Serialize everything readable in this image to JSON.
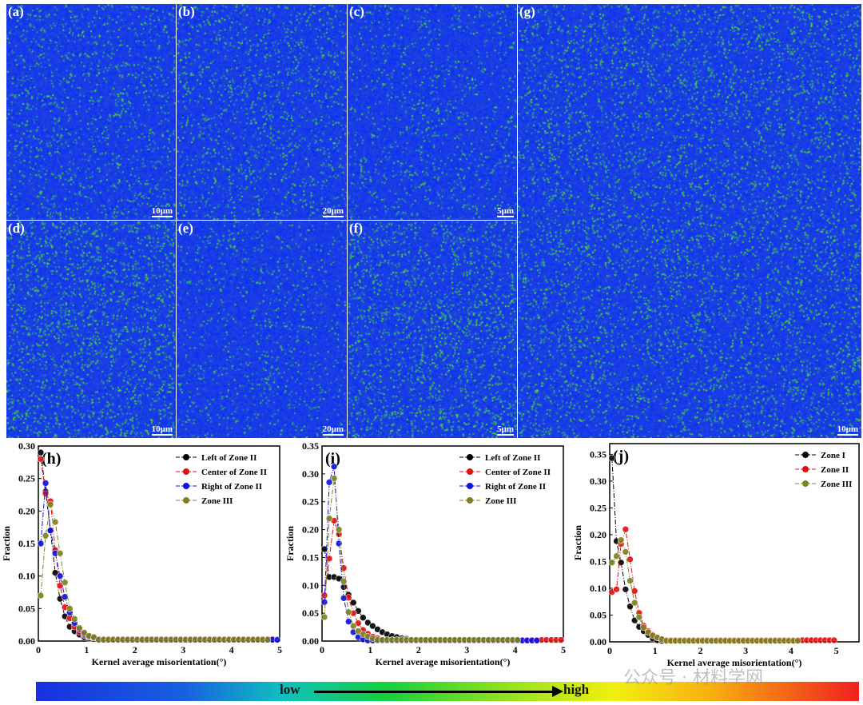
{
  "maps": [
    {
      "id": "a",
      "label": "(a)",
      "scale": "10μm",
      "green": 0.18
    },
    {
      "id": "b",
      "label": "(b)",
      "scale": "20μm",
      "green": 0.2
    },
    {
      "id": "c",
      "label": "(c)",
      "scale": "5μm",
      "green": 0.15
    },
    {
      "id": "d",
      "label": "(d)",
      "scale": "10μm",
      "green": 0.3
    },
    {
      "id": "e",
      "label": "(e)",
      "scale": "20μm",
      "green": 0.14
    },
    {
      "id": "f",
      "label": "(f)",
      "scale": "5μm",
      "green": 0.28
    },
    {
      "id": "g",
      "label": "(g)",
      "scale": "10μm",
      "green": 0.25
    }
  ],
  "colorbar": {
    "low": "low",
    "high": "high"
  },
  "watermark": "公众号 · 材料学网",
  "chart_data": [
    {
      "type": "line",
      "panel": "(h)",
      "xlabel": "Kernel average misorientation(°)",
      "ylabel": "Fraction",
      "xlim": [
        0,
        5
      ],
      "ylim": [
        0,
        0.3
      ],
      "yticks": [
        "0.00",
        "0.05",
        "0.10",
        "0.15",
        "0.20",
        "0.25",
        "0.30"
      ],
      "xticks": [
        "0",
        "1",
        "2",
        "3",
        "4",
        "5"
      ],
      "legend": "top-right",
      "x_start": 0.05,
      "x_step": 0.1,
      "series": [
        {
          "name": "Left of Zone II",
          "color": "#000000",
          "values": [
            0.29,
            0.23,
            0.17,
            0.105,
            0.065,
            0.038,
            0.022,
            0.015,
            0.01,
            0.006,
            0.004,
            0.003
          ],
          "tail": 0.002,
          "x_end": 4.85
        },
        {
          "name": "Center of Zone II",
          "color": "#e01010",
          "values": [
            0.28,
            0.227,
            0.215,
            0.14,
            0.085,
            0.052,
            0.035,
            0.022,
            0.014,
            0.009,
            0.006,
            0.005
          ],
          "tail": 0.003,
          "x_end": 4.85
        },
        {
          "name": "Right of Zone II",
          "color": "#1010e0",
          "values": [
            0.15,
            0.243,
            0.17,
            0.135,
            0.1,
            0.068,
            0.044,
            0.028,
            0.018,
            0.011,
            0.007,
            0.005
          ],
          "tail": 0.002,
          "x_end": 4.95
        },
        {
          "name": "Zone III",
          "color": "#808020",
          "values": [
            0.07,
            0.162,
            0.21,
            0.183,
            0.135,
            0.09,
            0.05,
            0.034,
            0.02,
            0.013,
            0.008,
            0.006
          ],
          "tail": 0.002,
          "x_end": 4.75
        }
      ]
    },
    {
      "type": "line",
      "panel": "(i)",
      "xlabel": "Kernel average misorientation(°)",
      "ylabel": "Fraction",
      "xlim": [
        0,
        5
      ],
      "ylim": [
        0,
        0.35
      ],
      "yticks": [
        "0.00",
        "0.05",
        "0.10",
        "0.15",
        "0.20",
        "0.25",
        "0.30",
        "0.35"
      ],
      "xticks": [
        "0",
        "1",
        "2",
        "3",
        "4",
        "5"
      ],
      "legend": "top-right",
      "x_start": 0.05,
      "x_step": 0.1,
      "series": [
        {
          "name": "Left of Zone II",
          "color": "#000000",
          "values": [
            0.165,
            0.115,
            0.115,
            0.112,
            0.097,
            0.083,
            0.069,
            0.054,
            0.042,
            0.033,
            0.027,
            0.021,
            0.016,
            0.012,
            0.009,
            0.007,
            0.005,
            0.004
          ],
          "tail": 0.002,
          "x_end": 4.05
        },
        {
          "name": "Center of Zone II",
          "color": "#e01010",
          "values": [
            0.082,
            0.148,
            0.216,
            0.192,
            0.131,
            0.078,
            0.05,
            0.032,
            0.02,
            0.013,
            0.008,
            0.005
          ],
          "tail": 0.002,
          "x_end": 4.95
        },
        {
          "name": "Right of Zone II",
          "color": "#1010e0",
          "values": [
            0.07,
            0.285,
            0.313,
            0.175,
            0.077,
            0.035,
            0.016,
            0.007,
            0.003,
            0.001
          ],
          "tail": 0.001,
          "x_end": 4.45
        },
        {
          "name": "Zone III",
          "color": "#808020",
          "values": [
            0.043,
            0.22,
            0.292,
            0.2,
            0.107,
            0.052,
            0.027,
            0.018,
            0.012,
            0.008,
            0.005
          ],
          "tail": 0.002,
          "x_end": 4.05
        }
      ]
    },
    {
      "type": "line",
      "panel": "(j)",
      "xlabel": "Kernel average misorientation(°)",
      "ylabel": "Fraction",
      "xlim": [
        0,
        5.5
      ],
      "ylim": [
        0,
        0.37
      ],
      "yticks": [
        "0.00",
        "0.05",
        "0.10",
        "0.15",
        "0.20",
        "0.25",
        "0.30",
        "0.35"
      ],
      "xticks": [
        "0",
        "1",
        "2",
        "3",
        "4",
        "5"
      ],
      "legend": "top-right",
      "x_start": 0.05,
      "x_step": 0.1,
      "series": [
        {
          "name": "Zone I",
          "color": "#000000",
          "values": [
            0.343,
            0.188,
            0.148,
            0.098,
            0.066,
            0.04,
            0.028,
            0.02,
            0.013,
            0.006,
            0.003
          ],
          "tail": 0.002,
          "x_end": 4.05
        },
        {
          "name": "Zone II",
          "color": "#e01010",
          "values": [
            0.093,
            0.098,
            0.183,
            0.21,
            0.154,
            0.095,
            0.054,
            0.03,
            0.02,
            0.013,
            0.008,
            0.005
          ],
          "tail": 0.003,
          "x_end": 4.95
        },
        {
          "name": "Zone III",
          "color": "#808020",
          "values": [
            0.148,
            0.16,
            0.19,
            0.168,
            0.114,
            0.073,
            0.046,
            0.027,
            0.018,
            0.012,
            0.008,
            0.005
          ],
          "tail": 0.002,
          "x_end": 4.15
        }
      ]
    }
  ]
}
